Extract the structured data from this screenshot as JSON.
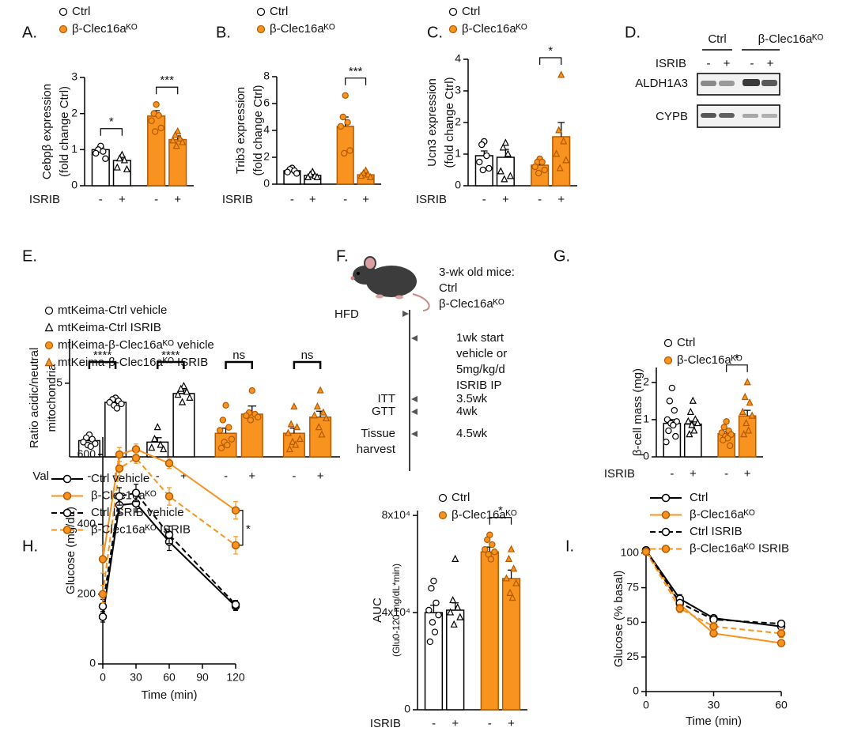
{
  "chart_data": [
    {
      "type": "bar",
      "panel": "A.",
      "ylabel": [
        "Cebpβ expression",
        "(fold change Ctrl)"
      ],
      "xlabel": "ISRIB",
      "categories": [
        "-",
        "+",
        "-",
        "+"
      ],
      "values": [
        1.0,
        0.7,
        1.93,
        1.28
      ],
      "errors": [
        0.07,
        0.1,
        0.15,
        0.1
      ],
      "points": [
        [
          1.1,
          1.0,
          0.95,
          0.9,
          0.75
        ],
        [
          0.85,
          0.75,
          0.7,
          0.5,
          0.45
        ],
        [
          2.25,
          2.0,
          1.95,
          1.8,
          1.6,
          1.5
        ],
        [
          1.5,
          1.4,
          1.3,
          1.25,
          1.2,
          1.1
        ]
      ],
      "colors": [
        "#ffffff",
        "#ffffff",
        "#f7931e",
        "#f7931e"
      ],
      "markers": [
        "circle",
        "triangle",
        "circle",
        "triangle"
      ],
      "legend": [
        {
          "name": "Ctrl",
          "color": "#ffffff",
          "marker": "circle"
        },
        {
          "name": "β-Clec16aᴷᴼ",
          "color": "#f7931e",
          "marker": "circle"
        }
      ],
      "ylim": [
        0,
        3
      ],
      "yticks": [
        0,
        1,
        2,
        3
      ],
      "annotations": [
        {
          "text": "*",
          "bars": [
            0,
            1
          ]
        },
        {
          "text": "***",
          "bars": [
            2,
            3
          ]
        }
      ]
    },
    {
      "type": "bar",
      "panel": "B.",
      "ylabel": [
        "Trib3 expression",
        "(fold change Ctrl)"
      ],
      "xlabel": "ISRIB",
      "categories": [
        "-",
        "+",
        "-",
        "+"
      ],
      "values": [
        1.0,
        0.65,
        4.3,
        0.7
      ],
      "errors": [
        0.08,
        0.08,
        0.7,
        0.1
      ],
      "points": [
        [
          1.2,
          1.1,
          1.0,
          0.9,
          0.8
        ],
        [
          0.9,
          0.7,
          0.6,
          0.5,
          0.5
        ],
        [
          6.6,
          5.0,
          4.6,
          4.3,
          2.5,
          2.3
        ],
        [
          1.0,
          0.8,
          0.7,
          0.6,
          0.5
        ]
      ],
      "colors": [
        "#ffffff",
        "#ffffff",
        "#f7931e",
        "#f7931e"
      ],
      "markers": [
        "circle",
        "triangle",
        "circle",
        "triangle"
      ],
      "legend": [
        {
          "name": "Ctrl",
          "color": "#ffffff",
          "marker": "circle"
        },
        {
          "name": "β-Clec16aᴷᴼ",
          "color": "#f7931e",
          "marker": "circle"
        }
      ],
      "ylim": [
        0,
        8
      ],
      "yticks": [
        0,
        2,
        4,
        6,
        8
      ],
      "annotations": [
        {
          "text": "***",
          "bars": [
            2,
            3
          ]
        }
      ]
    },
    {
      "type": "bar",
      "panel": "C.",
      "ylabel": [
        "Ucn3 expression",
        "(fold change Ctrl)"
      ],
      "xlabel": "ISRIB",
      "categories": [
        "-",
        "+",
        "-",
        "+"
      ],
      "values": [
        0.95,
        0.9,
        0.65,
        1.55
      ],
      "errors": [
        0.15,
        0.25,
        0.1,
        0.45
      ],
      "points": [
        [
          1.4,
          1.3,
          0.95,
          0.75,
          0.55,
          0.5
        ],
        [
          1.35,
          1.2,
          1.0,
          0.45,
          0.3,
          0.2
        ],
        [
          0.85,
          0.75,
          0.75,
          0.6,
          0.5,
          0.4
        ],
        [
          3.5,
          1.75,
          1.4,
          1.0,
          0.8,
          0.55
        ]
      ],
      "colors": [
        "#ffffff",
        "#ffffff",
        "#f7931e",
        "#f7931e"
      ],
      "markers": [
        "circle",
        "triangle",
        "circle",
        "triangle"
      ],
      "legend": [
        {
          "name": "Ctrl",
          "color": "#ffffff",
          "marker": "circle"
        },
        {
          "name": "β-Clec16aᴷᴼ",
          "color": "#f7931e",
          "marker": "circle"
        }
      ],
      "ylim": [
        0,
        4
      ],
      "yticks": [
        0,
        1,
        2,
        3,
        4
      ],
      "annotations": [
        {
          "text": "*",
          "bars": [
            2,
            3
          ]
        }
      ]
    },
    {
      "type": "bar",
      "panel": "E.",
      "ylabel": [
        "Ratio acidic/neutral",
        "mitochondria"
      ],
      "xlabel": "Val",
      "categories": [
        "-",
        "+",
        "-",
        "+",
        "-",
        "+",
        "-",
        "+"
      ],
      "values": [
        1.1,
        3.7,
        1.0,
        4.3,
        1.6,
        2.9,
        1.6,
        2.7
      ],
      "errors": [
        0.12,
        0.15,
        0.3,
        0.25,
        0.35,
        0.55,
        0.35,
        0.4
      ],
      "points": [
        [
          1.5,
          1.3,
          1.2,
          1.0,
          0.9,
          0.8,
          0.7
        ],
        [
          4.0,
          3.9,
          3.8,
          3.7,
          3.6,
          3.5,
          3.3
        ],
        [
          2.0,
          1.2,
          0.8,
          0.6,
          0.5
        ],
        [
          4.8,
          4.6,
          4.4,
          4.2,
          4.0,
          3.7
        ],
        [
          3.5,
          2.5,
          2.0,
          1.8,
          1.2,
          1.0,
          0.8,
          0.6
        ],
        [
          4.5,
          3.0,
          2.9,
          2.8,
          2.7,
          2.5
        ],
        [
          3.4,
          2.2,
          2.0,
          1.6,
          1.2,
          1.0,
          0.8,
          0.5
        ],
        [
          4.5,
          3.4,
          3.0,
          2.8,
          2.6,
          2.0,
          1.5
        ]
      ],
      "colors": [
        "#ffffff",
        "#ffffff",
        "#ffffff",
        "#ffffff",
        "#f7931e",
        "#f7931e",
        "#f7931e",
        "#f7931e"
      ],
      "markers": [
        "circle",
        "circle",
        "triangle",
        "triangle",
        "circle",
        "circle",
        "triangle",
        "triangle"
      ],
      "legend": [
        {
          "name": "mtKeima-Ctrl vehicle",
          "color": "#ffffff",
          "marker": "circle"
        },
        {
          "name": "mtKeima-Ctrl ISRIB",
          "color": "#ffffff",
          "marker": "triangle"
        },
        {
          "name": "mtKeima-β-Clec16aᴷᴼ vehicle",
          "color": "#f7931e",
          "marker": "circle"
        },
        {
          "name": "mtKeima-β-Clec16aᴷᴼ ISRIB",
          "color": "#f7931e",
          "marker": "triangle"
        }
      ],
      "ylim": [
        0,
        8
      ],
      "yticks": [
        5
      ],
      "annotations": [
        {
          "text": "****",
          "bars": [
            0,
            1
          ]
        },
        {
          "text": "****",
          "bars": [
            2,
            3
          ]
        },
        {
          "text": "ns",
          "bars": [
            4,
            5
          ]
        },
        {
          "text": "ns",
          "bars": [
            6,
            7
          ]
        }
      ]
    },
    {
      "type": "bar",
      "panel": "G.",
      "ylabel": [
        "β-cell mass (mg)"
      ],
      "xlabel": "ISRIB",
      "categories": [
        "-",
        "+",
        "-",
        "+"
      ],
      "values": [
        0.9,
        0.88,
        0.62,
        1.1
      ],
      "errors": [
        0.1,
        0.08,
        0.05,
        0.15
      ],
      "points": [
        [
          1.85,
          1.5,
          1.25,
          1.0,
          0.95,
          0.9,
          0.85,
          0.7,
          0.55,
          0.4
        ],
        [
          1.5,
          1.2,
          1.0,
          0.95,
          0.9,
          0.85,
          0.7,
          0.6
        ],
        [
          0.95,
          0.8,
          0.7,
          0.65,
          0.6,
          0.55,
          0.5,
          0.45,
          0.3
        ],
        [
          2.0,
          1.6,
          1.45,
          1.2,
          1.1,
          0.9,
          0.7,
          0.6
        ]
      ],
      "colors": [
        "#ffffff",
        "#ffffff",
        "#f7931e",
        "#f7931e"
      ],
      "markers": [
        "circle",
        "triangle",
        "circle",
        "triangle"
      ],
      "legend": [
        {
          "name": "Ctrl",
          "color": "#ffffff",
          "marker": "circle"
        },
        {
          "name": "β-Clec16aᴷᴼ",
          "color": "#f7931e",
          "marker": "circle"
        }
      ],
      "ylim": [
        0,
        2.4
      ],
      "yticks": [
        0,
        1,
        2
      ],
      "annotations": [
        {
          "text": "*",
          "bars": [
            2,
            3
          ]
        }
      ]
    },
    {
      "type": "line",
      "panel": "H.",
      "ylabel": [
        "Glucose (mg/dL)"
      ],
      "xlabel": "Time (min)",
      "x": [
        0,
        15,
        30,
        60,
        120
      ],
      "xlim": [
        0,
        120
      ],
      "xticks": [
        0,
        30,
        60,
        90,
        120
      ],
      "ylim": [
        0,
        650
      ],
      "yticks": [
        0,
        200,
        400,
        600
      ],
      "series": [
        {
          "name": "Ctrl vehicle",
          "color": "#000000",
          "dash": false,
          "marker_fill": "#ffffff",
          "values": [
            135,
            455,
            460,
            350,
            165
          ],
          "errors": [
            15,
            25,
            25,
            25,
            12
          ]
        },
        {
          "name": "β-Clec16aᴷᴼ",
          "color": "#f7931e",
          "dash": false,
          "marker_fill": "#f7931e",
          "values": [
            300,
            600,
            615,
            575,
            440
          ],
          "errors": [
            40,
            20,
            15,
            15,
            25
          ]
        },
        {
          "name": "Ctrl ISRIB vehicle",
          "color": "#000000",
          "dash": true,
          "marker_fill": "#ffffff",
          "values": [
            165,
            480,
            490,
            370,
            170
          ],
          "errors": [
            20,
            25,
            25,
            25,
            12
          ]
        },
        {
          "name": "β-Clec16aᴷᴼ ISRIB",
          "color": "#f7931e",
          "dash": true,
          "marker_fill": "#f7931e",
          "values": [
            200,
            560,
            590,
            480,
            340
          ],
          "errors": [
            25,
            20,
            15,
            25,
            25
          ]
        }
      ],
      "annotations": [
        {
          "text": "*",
          "series": [
            1,
            3
          ]
        }
      ]
    },
    {
      "type": "bar",
      "ylabel": [
        "AUC",
        "(Glu0-120 mg/dL*min)"
      ],
      "xlabel": "ISRIB",
      "categories": [
        "-",
        "+",
        "-",
        "+"
      ],
      "values": [
        40000,
        41000,
        65000,
        54000
      ],
      "errors": [
        3000,
        3000,
        2000,
        3500
      ],
      "points": [
        [
          53000,
          50000,
          44000,
          41000,
          39000,
          36000,
          32000,
          28000
        ],
        [
          62000,
          45000,
          42000,
          40000,
          38000,
          35000
        ],
        [
          72000,
          70000,
          68000,
          66000,
          65000,
          64000,
          62000
        ],
        [
          66000,
          62000,
          58000,
          54000,
          52000,
          48000,
          46000
        ]
      ],
      "colors": [
        "#ffffff",
        "#ffffff",
        "#f7931e",
        "#f7931e"
      ],
      "markers": [
        "circle",
        "triangle",
        "circle",
        "triangle"
      ],
      "legend": [
        {
          "name": "Ctrl",
          "color": "#ffffff",
          "marker": "circle"
        },
        {
          "name": "β-Clec16aᴷᴼ",
          "color": "#f7931e",
          "marker": "circle"
        }
      ],
      "ylim": [
        0,
        82000
      ],
      "yticks": [
        0,
        {
          "value": 40000,
          "label": "4x10⁴"
        },
        {
          "value": 80000,
          "label": "8x10⁴"
        }
      ],
      "annotations": [
        {
          "text": "*",
          "bars": [
            2,
            3
          ]
        }
      ]
    },
    {
      "type": "line",
      "panel": "I.",
      "ylabel": [
        "Glucose (% basal)"
      ],
      "xlabel": "Time (min)",
      "x": [
        0,
        15,
        30,
        60
      ],
      "xlim": [
        0,
        60
      ],
      "xticks": [
        0,
        30,
        60
      ],
      "ylim": [
        0,
        105
      ],
      "yticks": [
        0,
        25,
        50,
        75,
        100
      ],
      "series": [
        {
          "name": "Ctrl",
          "color": "#000000",
          "dash": false,
          "marker_fill": "#ffffff",
          "values": [
            102,
            67,
            53,
            47
          ],
          "errors": [
            2,
            3,
            2,
            2
          ]
        },
        {
          "name": "β-Clec16aᴷᴼ",
          "color": "#f7931e",
          "dash": false,
          "marker_fill": "#f7931e",
          "values": [
            102,
            63,
            42,
            35
          ],
          "errors": [
            2,
            3,
            2,
            2
          ]
        },
        {
          "name": "Ctrl ISRIB",
          "color": "#000000",
          "dash": true,
          "marker_fill": "#ffffff",
          "values": [
            102,
            64,
            52,
            49
          ],
          "errors": [
            2,
            2,
            2,
            2
          ]
        },
        {
          "name": "β-Clec16aᴷᴼ ISRIB",
          "color": "#f7931e",
          "dash": true,
          "marker_fill": "#f7931e",
          "values": [
            101,
            60,
            47,
            42
          ],
          "errors": [
            2,
            3,
            3,
            3
          ]
        }
      ]
    }
  ],
  "blot": {
    "panel": "D.",
    "groups": [
      "Ctrl",
      "β-Clec16aᴷᴼ"
    ],
    "row_label": "ISRIB",
    "lanes": [
      "-",
      "+",
      "-",
      "+"
    ],
    "bands": [
      "ALDH1A3",
      "CYPB"
    ]
  },
  "timeline": {
    "panel": "F.",
    "cohort": [
      "3-wk old mice:",
      "Ctrl",
      "β-Clec16aᴷᴼ"
    ],
    "start": "HFD",
    "events": [
      {
        "label": [],
        "time": [
          "1wk start",
          "vehicle or",
          "5mg/kg/d",
          "ISRIB IP"
        ]
      },
      {
        "label": [
          "ITT"
        ],
        "time": [
          "3.5wk"
        ]
      },
      {
        "label": [
          "GTT"
        ],
        "time": [
          "4wk"
        ]
      },
      {
        "label": [
          "Tissue",
          "harvest"
        ],
        "time": [
          "4.5wk"
        ]
      }
    ]
  }
}
